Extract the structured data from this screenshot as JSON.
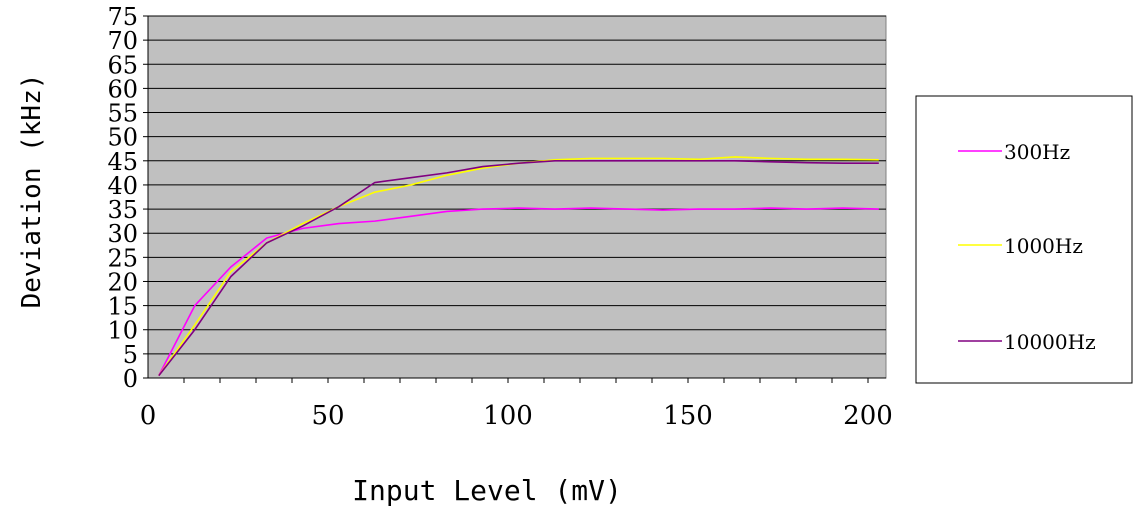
{
  "chart_data": {
    "type": "line",
    "title": "",
    "xlabel": "Input Level (mV)",
    "ylabel": "Deviation (kHz)",
    "xlim": [
      0,
      205
    ],
    "ylim": [
      0,
      75
    ],
    "x_ticks": [
      "0",
      "50",
      "100",
      "150",
      "200"
    ],
    "x_tick_values": [
      0,
      50,
      100,
      150,
      200
    ],
    "y_ticks": [
      "0",
      "5",
      "10",
      "15",
      "20",
      "25",
      "30",
      "35",
      "40",
      "45",
      "50",
      "55",
      "60",
      "65",
      "70",
      "75"
    ],
    "y_tick_values": [
      0,
      5,
      10,
      15,
      20,
      25,
      30,
      35,
      40,
      45,
      50,
      55,
      60,
      65,
      70,
      75
    ],
    "grid": true,
    "plot_background": "#c0c0c0",
    "legend_position": "right",
    "x": [
      3,
      13,
      23,
      33,
      43,
      53,
      63,
      73,
      83,
      93,
      103,
      113,
      123,
      133,
      143,
      153,
      163,
      173,
      183,
      193,
      203
    ],
    "series": [
      {
        "name": "300Hz",
        "color": "#ff00ff",
        "values": [
          0.5,
          15,
          23,
          29,
          31,
          32,
          32.5,
          33.5,
          34.5,
          35,
          35.2,
          35,
          35.2,
          35,
          34.8,
          35,
          35,
          35.2,
          35,
          35.2,
          35
        ]
      },
      {
        "name": "1000Hz",
        "color": "#ffff00",
        "values": [
          0.5,
          11,
          22,
          28,
          32,
          35.5,
          38.5,
          40,
          42,
          43.5,
          44.5,
          45.2,
          45.5,
          45.5,
          45.5,
          45.3,
          45.8,
          45.5,
          45.3,
          45.3,
          45.2
        ]
      },
      {
        "name": "10000Hz",
        "color": "#800080",
        "values": [
          0.5,
          10,
          21,
          28,
          31.5,
          35.5,
          40.5,
          41.5,
          42.5,
          43.8,
          44.5,
          45,
          45,
          45,
          45,
          45,
          45,
          44.8,
          44.6,
          44.5,
          44.5
        ]
      }
    ]
  }
}
